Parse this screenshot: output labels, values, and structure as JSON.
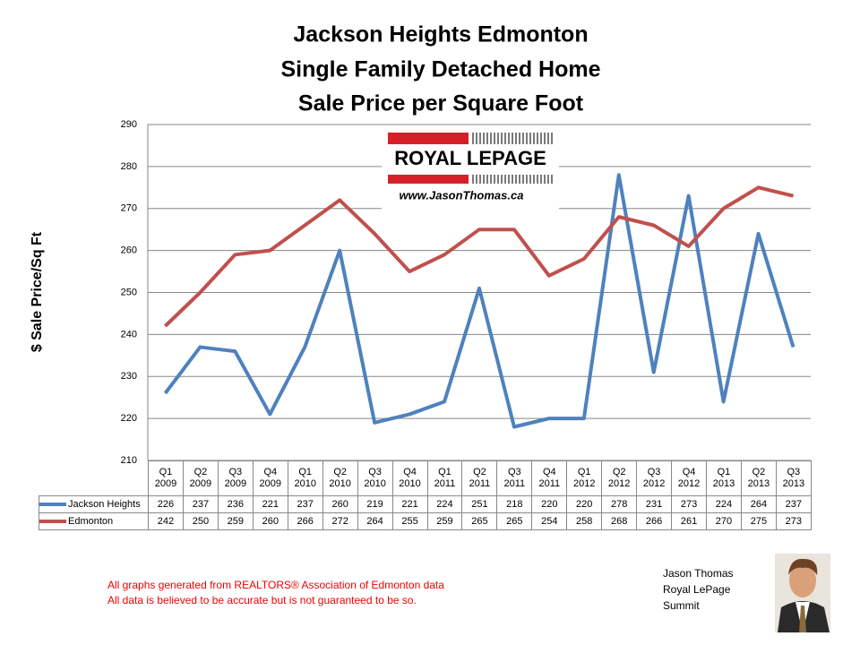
{
  "chart_data": {
    "type": "line",
    "title": [
      "Jackson Heights Edmonton",
      "Single Family Detached Home",
      "Sale Price per Square Foot"
    ],
    "y_label": "$ Sale Price/Sq Ft",
    "categories": [
      "Q1 2009",
      "Q2 2009",
      "Q3 2009",
      "Q4 2009",
      "Q1 2010",
      "Q2 2010",
      "Q3 2010",
      "Q4 2010",
      "Q1 2011",
      "Q2 2011",
      "Q3 2011",
      "Q4 2011",
      "Q1 2012",
      "Q2 2012",
      "Q3 2012",
      "Q4 2012",
      "Q1 2013",
      "Q2 2013",
      "Q3 2013"
    ],
    "series": [
      {
        "name": "Jackson Heights",
        "color": "#4f81bd",
        "values": [
          226,
          237,
          236,
          221,
          237,
          260,
          219,
          221,
          224,
          251,
          218,
          220,
          220,
          278,
          231,
          273,
          224,
          264,
          237
        ]
      },
      {
        "name": "Edmonton",
        "color": "#c0504d",
        "values": [
          242,
          250,
          259,
          260,
          266,
          272,
          264,
          255,
          259,
          265,
          265,
          254,
          258,
          268,
          266,
          261,
          270,
          275,
          273
        ]
      }
    ],
    "ylim": [
      210,
      290
    ],
    "yticks": [
      210,
      220,
      230,
      240,
      250,
      260,
      270,
      280,
      290
    ],
    "grid": true
  },
  "branding": {
    "logo": "ROYAL LEPAGE",
    "url": "www.JasonThomas.ca"
  },
  "footer": {
    "notes": [
      "All graphs generated from REALTORS® Association of Edmonton data",
      "All data is believed to be accurate but is not guaranteed to be so."
    ],
    "agent": [
      "Jason Thomas",
      "Royal LePage",
      "Summit"
    ]
  }
}
